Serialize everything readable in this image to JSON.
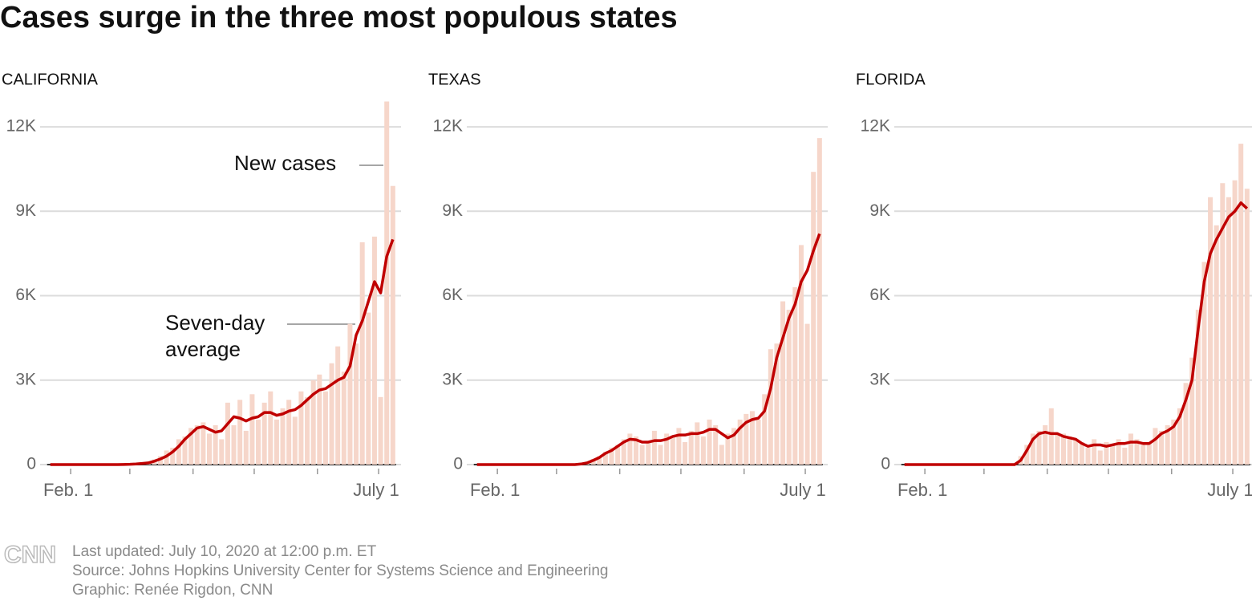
{
  "title": "Cases surge in the three most populous states",
  "chart_data": [
    {
      "type": "bar",
      "title": "CALIFORNIA",
      "x": [
        22,
        25,
        28,
        31,
        34,
        37,
        40,
        43,
        46,
        49,
        52,
        55,
        58,
        61,
        64,
        67,
        70,
        73,
        76,
        79,
        82,
        85,
        88,
        91,
        94,
        97,
        100,
        103,
        106,
        109,
        112,
        115,
        118,
        121,
        124,
        127,
        130,
        133,
        136,
        139,
        142,
        145,
        148,
        151,
        154,
        157,
        160,
        163,
        166,
        169,
        172,
        175,
        178,
        181,
        184,
        187,
        190
      ],
      "xlim": [
        17,
        194
      ],
      "xticks": [
        {
          "value": 32,
          "label": "Feb. 1"
        },
        {
          "value": 183,
          "label": "July 1"
        }
      ],
      "minor_xticks": [
        61,
        92,
        122,
        153
      ],
      "ylim": [
        0,
        13000
      ],
      "yticks": [
        0,
        {
          "value": 3000,
          "label": "3K"
        },
        {
          "value": 6000,
          "label": "6K"
        },
        {
          "value": 9000,
          "label": "9K"
        },
        {
          "value": 12000,
          "label": "12K"
        }
      ],
      "grid": true,
      "series": [
        {
          "name": "New cases",
          "type": "bar",
          "color": "#f6d6ca",
          "values": [
            0,
            0,
            0,
            0,
            0,
            0,
            0,
            0,
            0,
            0,
            0,
            0,
            10,
            20,
            30,
            60,
            100,
            180,
            300,
            500,
            600,
            900,
            1000,
            1300,
            1400,
            1500,
            1100,
            1400,
            900,
            2200,
            1400,
            2300,
            1200,
            2500,
            1600,
            2200,
            2600,
            1600,
            2000,
            2300,
            1700,
            2600,
            2400,
            3000,
            3200,
            2600,
            3600,
            4200,
            3300,
            5000,
            4300,
            7900,
            5400,
            8100,
            2400,
            12900,
            9900
          ]
        },
        {
          "name": "Seven-day average",
          "type": "line",
          "color": "#c00000",
          "values": [
            0,
            0,
            0,
            0,
            0,
            0,
            0,
            0,
            0,
            0,
            0,
            0,
            5,
            10,
            20,
            40,
            60,
            120,
            200,
            300,
            450,
            650,
            900,
            1100,
            1300,
            1350,
            1250,
            1150,
            1200,
            1450,
            1700,
            1650,
            1550,
            1650,
            1700,
            1850,
            1850,
            1750,
            1800,
            1900,
            1950,
            2100,
            2300,
            2500,
            2650,
            2700,
            2850,
            3000,
            3100,
            3500,
            4600,
            5100,
            5800,
            6500,
            6100,
            7400,
            8000
          ]
        }
      ]
    },
    {
      "type": "bar",
      "title": "TEXAS",
      "x": [
        22,
        25,
        28,
        31,
        34,
        37,
        40,
        43,
        46,
        49,
        52,
        55,
        58,
        61,
        64,
        67,
        70,
        73,
        76,
        79,
        82,
        85,
        88,
        91,
        94,
        97,
        100,
        103,
        106,
        109,
        112,
        115,
        118,
        121,
        124,
        127,
        130,
        133,
        136,
        139,
        142,
        145,
        148,
        151,
        154,
        157,
        160,
        163,
        166,
        169,
        172,
        175,
        178,
        181,
        184,
        187,
        190
      ],
      "xlim": [
        17,
        194
      ],
      "xticks": [
        {
          "value": 32,
          "label": "Feb. 1"
        },
        {
          "value": 183,
          "label": "July 1"
        }
      ],
      "minor_xticks": [
        61,
        92,
        122,
        153
      ],
      "ylim": [
        0,
        13000
      ],
      "yticks": [
        0,
        {
          "value": 3000,
          "label": "3K"
        },
        {
          "value": 6000,
          "label": "6K"
        },
        {
          "value": 9000,
          "label": "9K"
        },
        {
          "value": 12000,
          "label": "12K"
        }
      ],
      "grid": true,
      "series": [
        {
          "type": "bar",
          "color": "#f6d6ca",
          "values": [
            0,
            0,
            0,
            0,
            0,
            0,
            0,
            0,
            0,
            0,
            0,
            0,
            0,
            0,
            0,
            0,
            0,
            40,
            80,
            200,
            300,
            450,
            600,
            700,
            900,
            1100,
            1000,
            700,
            800,
            1200,
            700,
            1100,
            1000,
            1300,
            800,
            1200,
            1500,
            1000,
            1600,
            1400,
            700,
            1100,
            1300,
            1600,
            1800,
            1900,
            1600,
            2500,
            4100,
            4300,
            5800,
            5500,
            6300,
            7800,
            5000,
            10400,
            11600
          ]
        },
        {
          "type": "line",
          "color": "#c00000",
          "values": [
            0,
            0,
            0,
            0,
            0,
            0,
            0,
            0,
            0,
            0,
            0,
            0,
            0,
            0,
            0,
            0,
            0,
            20,
            60,
            150,
            250,
            400,
            500,
            650,
            800,
            900,
            880,
            800,
            800,
            850,
            850,
            900,
            1000,
            1050,
            1050,
            1100,
            1100,
            1150,
            1250,
            1250,
            1100,
            950,
            1050,
            1300,
            1500,
            1600,
            1650,
            1900,
            2700,
            3800,
            4500,
            5200,
            5700,
            6500,
            6900,
            7600,
            8200
          ]
        }
      ]
    },
    {
      "type": "bar",
      "title": "FLORIDA",
      "x": [
        22,
        25,
        28,
        31,
        34,
        37,
        40,
        43,
        46,
        49,
        52,
        55,
        58,
        61,
        64,
        67,
        70,
        73,
        76,
        79,
        82,
        85,
        88,
        91,
        94,
        97,
        100,
        103,
        106,
        109,
        112,
        115,
        118,
        121,
        124,
        127,
        130,
        133,
        136,
        139,
        142,
        145,
        148,
        151,
        154,
        157,
        160,
        163,
        166,
        169,
        172,
        175,
        178,
        181,
        184,
        187,
        190
      ],
      "xlim": [
        17,
        194
      ],
      "xticks": [
        {
          "value": 32,
          "label": "Feb. 1"
        },
        {
          "value": 183,
          "label": "July 1"
        }
      ],
      "minor_xticks": [
        61,
        92,
        122,
        153
      ],
      "ylim": [
        0,
        13000
      ],
      "yticks": [
        0,
        {
          "value": 3000,
          "label": "3K"
        },
        {
          "value": 6000,
          "label": "6K"
        },
        {
          "value": 9000,
          "label": "9K"
        },
        {
          "value": 12000,
          "label": "12K"
        }
      ],
      "grid": true,
      "series": [
        {
          "type": "bar",
          "color": "#f6d6ca",
          "values": [
            0,
            0,
            0,
            0,
            0,
            0,
            0,
            0,
            0,
            0,
            0,
            0,
            0,
            0,
            0,
            0,
            0,
            0,
            0,
            300,
            700,
            1100,
            1200,
            1400,
            2000,
            1100,
            1100,
            1000,
            900,
            800,
            600,
            900,
            500,
            800,
            700,
            900,
            600,
            1100,
            900,
            700,
            800,
            1300,
            1200,
            1400,
            1600,
            2000,
            2900,
            3800,
            5500,
            7200,
            9500,
            8500,
            10000,
            9500,
            10100,
            11400,
            9800
          ]
        },
        {
          "type": "line",
          "color": "#c00000",
          "values": [
            0,
            0,
            0,
            0,
            0,
            0,
            0,
            0,
            0,
            0,
            0,
            0,
            0,
            0,
            0,
            0,
            0,
            0,
            0,
            150,
            500,
            900,
            1100,
            1150,
            1100,
            1100,
            1000,
            950,
            900,
            750,
            650,
            700,
            700,
            650,
            700,
            750,
            750,
            800,
            800,
            750,
            750,
            900,
            1100,
            1200,
            1350,
            1700,
            2300,
            3000,
            4800,
            6500,
            7500,
            8000,
            8400,
            8800,
            9000,
            9300,
            9100
          ]
        }
      ]
    }
  ],
  "footer": {
    "logo": "CNN",
    "lines": [
      "Last updated: July 10, 2020 at 12:00 p.m. ET",
      "Source: Johns Hopkins University Center for Systems Science and Engineering",
      "Graphic: Renée Rigdon, CNN"
    ]
  }
}
